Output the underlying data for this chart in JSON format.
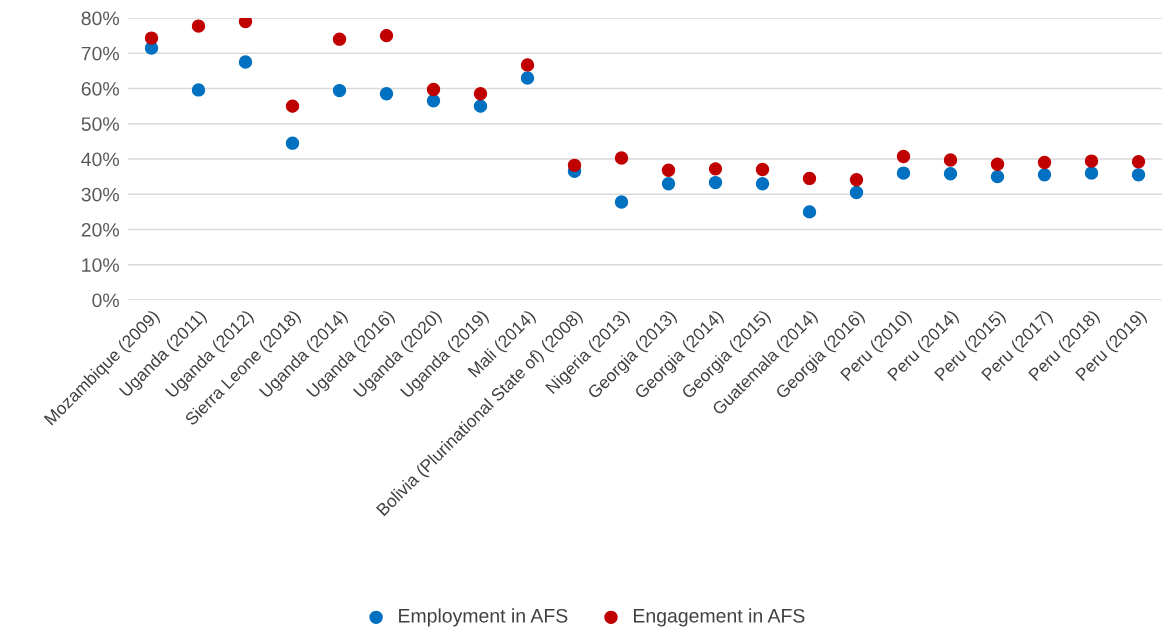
{
  "chart_data": {
    "type": "scatter",
    "categories": [
      "Mozambique (2009)",
      "Uganda (2011)",
      "Uganda (2012)",
      "Sierra Leone (2018)",
      "Uganda (2014)",
      "Uganda (2016)",
      "Uganda (2020)",
      "Uganda (2019)",
      "Mali (2014)",
      "Bolivia (Plurinational State of) (2008)",
      "Nigeria (2013)",
      "Georgia (2013)",
      "Georgia (2014)",
      "Georgia (2015)",
      "Guatemala (2014)",
      "Georgia (2016)",
      "Peru (2010)",
      "Peru (2014)",
      "Peru (2015)",
      "Peru (2017)",
      "Peru (2018)",
      "Peru (2019)"
    ],
    "series": [
      {
        "name": "Employment in AFS",
        "color": "#0070c0",
        "values": [
          71.5,
          59.6,
          67.5,
          44.5,
          59.4,
          58.5,
          56.5,
          55,
          63,
          36.5,
          27.8,
          33,
          33.3,
          33,
          25,
          30.5,
          36,
          35.8,
          35,
          35.5,
          36,
          35.5
        ]
      },
      {
        "name": "Engagement in AFS",
        "color": "#c00000",
        "values": [
          74.3,
          77.7,
          79,
          55,
          74,
          75,
          59.7,
          58.5,
          66.7,
          38.2,
          40.3,
          36.8,
          37.2,
          37,
          34.5,
          34.1,
          40.7,
          39.7,
          38.5,
          39,
          39.4,
          39.2
        ]
      }
    ],
    "ylim": [
      0,
      80
    ],
    "yticks": [
      {
        "value": 0,
        "label": "0%"
      },
      {
        "value": 10,
        "label": "10%"
      },
      {
        "value": 20,
        "label": "20%"
      },
      {
        "value": 30,
        "label": "30%"
      },
      {
        "value": 40,
        "label": "40%"
      },
      {
        "value": 50,
        "label": "50%"
      },
      {
        "value": 60,
        "label": "60%"
      },
      {
        "value": 70,
        "label": "70%"
      },
      {
        "value": 80,
        "label": "80%"
      }
    ],
    "grid": "y",
    "legend": "bottom",
    "marker": "circle"
  }
}
